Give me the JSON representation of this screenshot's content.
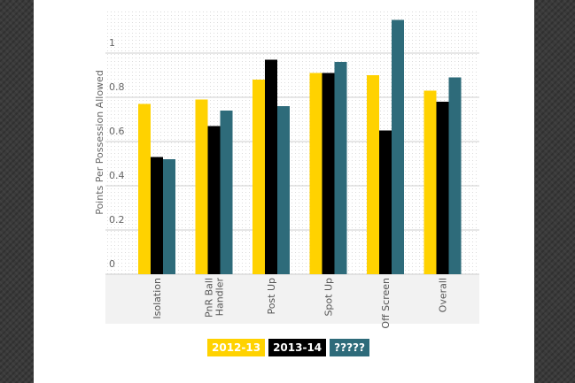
{
  "chart_data": {
    "type": "bar",
    "ylabel": "Points Per Possession Allowed",
    "xlabel": "",
    "ylim": [
      0,
      1.15
    ],
    "yticks": [
      "0",
      "0.2",
      "0.4",
      "0.6",
      "0.8",
      "1"
    ],
    "categories": [
      "Isolation",
      "PnR Ball Handler",
      "Post Up",
      "Spot Up",
      "Off Screen",
      "Overall"
    ],
    "series": [
      {
        "name": "2012-13",
        "color": "#ffd200",
        "values": [
          0.77,
          0.79,
          0.88,
          0.91,
          0.9,
          0.83
        ]
      },
      {
        "name": "2013-14",
        "color": "#000000",
        "values": [
          0.53,
          0.67,
          0.97,
          0.91,
          0.65,
          0.78
        ]
      },
      {
        "name": "?????",
        "color": "#2e6b7a",
        "values": [
          0.52,
          0.74,
          0.76,
          0.96,
          1.15,
          0.89
        ]
      }
    ],
    "grid": true,
    "legend_position": "bottom"
  },
  "page": {
    "background": "#3a3a3a",
    "paper": "#ffffff",
    "plot_background": "#f2f2f2"
  }
}
